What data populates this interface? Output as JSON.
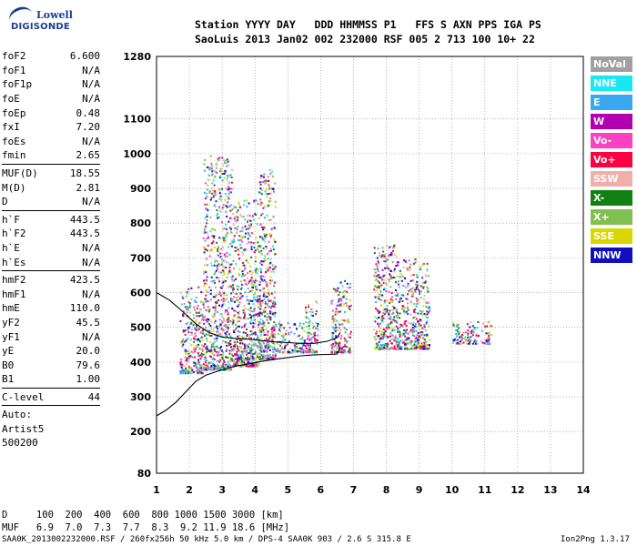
{
  "logo": {
    "line1": "Lowell",
    "line2": "DIGISONDE"
  },
  "header": {
    "line1": "Station YYYY DAY   DDD HHMMSS P1   FFS S AXN PPS IGA PS",
    "line2": "SaoLuis 2013 Jan02 002 232000 RSF 005 2 713 100 10+ 22"
  },
  "params": {
    "group1": [
      {
        "k": "foF2",
        "v": "6.600"
      },
      {
        "k": "foF1",
        "v": "N/A"
      },
      {
        "k": "foF1p",
        "v": "N/A"
      },
      {
        "k": "foE",
        "v": "N/A"
      },
      {
        "k": "foEp",
        "v": "0.48"
      },
      {
        "k": "fxI",
        "v": "7.20"
      },
      {
        "k": "foEs",
        "v": "N/A"
      },
      {
        "k": "fmin",
        "v": "2.65"
      }
    ],
    "group2": [
      {
        "k": "MUF(D)",
        "v": "18.55"
      },
      {
        "k": "M(D)",
        "v": "2.81"
      },
      {
        "k": "D",
        "v": "N/A"
      }
    ],
    "group3": [
      {
        "k": "h`F",
        "v": "443.5"
      },
      {
        "k": "h`F2",
        "v": "443.5"
      },
      {
        "k": "h`E",
        "v": "N/A"
      },
      {
        "k": "h`Es",
        "v": "N/A"
      }
    ],
    "group4": [
      {
        "k": "hmF2",
        "v": "423.5"
      },
      {
        "k": "hmF1",
        "v": "N/A"
      },
      {
        "k": "hmE",
        "v": "110.0"
      },
      {
        "k": "yF2",
        "v": "45.5"
      },
      {
        "k": "yF1",
        "v": "N/A"
      },
      {
        "k": "yE",
        "v": "20.0"
      },
      {
        "k": "B0",
        "v": "79.6"
      },
      {
        "k": "B1",
        "v": "1.00"
      }
    ],
    "clevel": {
      "k": "C-level",
      "v": "44"
    },
    "auto": [
      "Auto:",
      "Artist5",
      "500200"
    ]
  },
  "legend": [
    {
      "label": "NoVal",
      "color": "#a0a0a0"
    },
    {
      "label": "NNE",
      "color": "#19e8f0"
    },
    {
      "label": "E",
      "color": "#3aa8f0"
    },
    {
      "label": "W",
      "color": "#b000b0"
    },
    {
      "label": "Vo-",
      "color": "#ff40c0"
    },
    {
      "label": "Vo+",
      "color": "#ff0040"
    },
    {
      "label": "SSW",
      "color": "#f0b0a8"
    },
    {
      "label": "X-",
      "color": "#108010"
    },
    {
      "label": "X+",
      "color": "#80c050"
    },
    {
      "label": "SSE",
      "color": "#d8d800"
    },
    {
      "label": "NNW",
      "color": "#1010c0"
    }
  ],
  "footer": {
    "d_row": "D     100  200  400  600  800 1000 1500 3000 [km]",
    "muf_row": "MUF   6.9  7.0  7.3  7.7  8.3  9.2 11.9 18.6 [MHz]",
    "file": "SAA0K_2013002232000.RSF / 260fx256h 50 kHz 5.0 km / DPS-4 SAA0K 903 / 2.6 S 315.8 E",
    "version": "Ion2Png 1.3.17"
  },
  "chart_data": {
    "type": "scatter",
    "xlim": [
      1,
      14
    ],
    "ylim": [
      80,
      1280
    ],
    "x_ticks": [
      1,
      2,
      3,
      4,
      5,
      6,
      7,
      8,
      9,
      10,
      11,
      12,
      13,
      14
    ],
    "y_ticks": [
      80,
      200,
      300,
      400,
      500,
      600,
      700,
      800,
      900,
      1000,
      1100,
      1280
    ],
    "grid": true,
    "clusters": [
      {
        "x": [
          1.7,
          2.4
        ],
        "y": [
          370,
          620
        ]
      },
      {
        "x": [
          2.4,
          3.3
        ],
        "y": [
          380,
          1000
        ]
      },
      {
        "x": [
          3.3,
          4.1
        ],
        "y": [
          390,
          870
        ]
      },
      {
        "x": [
          4.1,
          4.6
        ],
        "y": [
          410,
          960
        ]
      },
      {
        "x": [
          4.6,
          5.5
        ],
        "y": [
          430,
          520
        ]
      },
      {
        "x": [
          5.5,
          5.9
        ],
        "y": [
          430,
          580
        ]
      },
      {
        "x": [
          6.3,
          6.9
        ],
        "y": [
          430,
          640
        ]
      },
      {
        "x": [
          7.6,
          8.3
        ],
        "y": [
          440,
          740
        ]
      },
      {
        "x": [
          8.3,
          8.9
        ],
        "y": [
          440,
          700
        ]
      },
      {
        "x": [
          8.9,
          9.3
        ],
        "y": [
          440,
          690
        ]
      },
      {
        "x": [
          10.0,
          11.2
        ],
        "y": [
          455,
          520
        ]
      }
    ],
    "series": [
      {
        "x": [
          1.0,
          1.3,
          1.6,
          1.9,
          2.2,
          2.5,
          2.8,
          3.1,
          3.4,
          3.8,
          4.2,
          4.6,
          5.0,
          5.4,
          5.8,
          6.2,
          6.5,
          6.6
        ],
        "y": [
          245,
          262,
          285,
          315,
          345,
          362,
          372,
          380,
          388,
          395,
          402,
          408,
          413,
          418,
          421,
          422,
          423,
          442
        ]
      },
      {
        "x": [
          1.0,
          1.4,
          1.8,
          2.2,
          2.6,
          3.0,
          3.4,
          3.8,
          4.2,
          4.6,
          5.0,
          5.4,
          5.8,
          6.2,
          6.5,
          6.6
        ],
        "y": [
          600,
          578,
          545,
          510,
          485,
          472,
          468,
          466,
          462,
          458,
          456,
          454,
          454,
          460,
          470,
          485
        ]
      }
    ]
  }
}
